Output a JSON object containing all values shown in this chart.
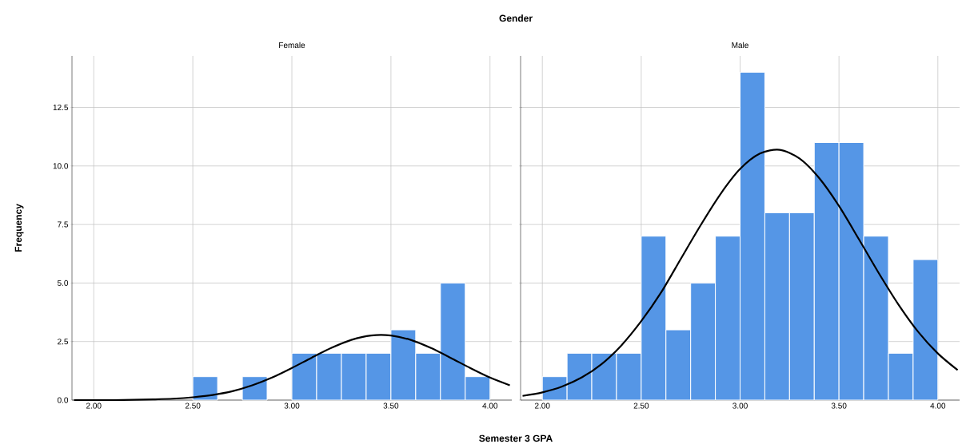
{
  "chart_data": [
    {
      "type": "histogram",
      "title": "Gender",
      "subtitle": "Female",
      "xlabel": "Semester 3 GPA",
      "ylabel": "Frequency",
      "grid": true,
      "xlim": [
        1.89,
        4.11
      ],
      "ylim": [
        0,
        14.7
      ],
      "xticks": [
        {
          "value": 2,
          "label": "2.00"
        },
        {
          "value": 2.5,
          "label": "2.50"
        },
        {
          "value": 3,
          "label": "3.00"
        },
        {
          "value": 3.5,
          "label": "3.50"
        },
        {
          "value": 4,
          "label": "4.00"
        }
      ],
      "yticks": [
        {
          "value": 0,
          "label": "0.0"
        },
        {
          "value": 2.5,
          "label": "2.5"
        },
        {
          "value": 5,
          "label": "5.0"
        },
        {
          "value": 7.5,
          "label": "7.5"
        },
        {
          "value": 10,
          "label": "10.0"
        },
        {
          "value": 12.5,
          "label": "12.5"
        }
      ],
      "bins": [
        2.0,
        2.125,
        2.25,
        2.375,
        2.5,
        2.625,
        2.75,
        2.875,
        3.0,
        3.125,
        3.25,
        3.375,
        3.5,
        3.625,
        3.75,
        3.875,
        4.0
      ],
      "series": [
        {
          "type": "histogram",
          "color": "#5596e6",
          "values": [
            0,
            0,
            0,
            0,
            1,
            0,
            1,
            0,
            2,
            2,
            2,
            2,
            3,
            2,
            5,
            1
          ]
        },
        {
          "type": "line",
          "color": "#000000",
          "x": [
            1.9,
            2.0,
            2.1,
            2.2,
            2.3,
            2.4,
            2.5,
            2.6,
            2.7,
            2.8,
            2.9,
            3.0,
            3.1,
            3.2,
            3.3,
            3.4,
            3.5,
            3.6,
            3.7,
            3.8,
            3.9,
            4.0,
            4.1
          ],
          "values": [
            0.0,
            0.0,
            0.0,
            0.01,
            0.03,
            0.06,
            0.12,
            0.22,
            0.38,
            0.63,
            0.96,
            1.37,
            1.81,
            2.23,
            2.57,
            2.76,
            2.76,
            2.57,
            2.23,
            1.81,
            1.37,
            0.96,
            0.63
          ]
        }
      ]
    },
    {
      "type": "histogram",
      "subtitle": "Male",
      "grid": true,
      "tick_labels": "x",
      "xlim": [
        1.89,
        4.11
      ],
      "ylim": [
        0,
        14.7
      ],
      "xticks": [
        {
          "value": 2,
          "label": "2.00"
        },
        {
          "value": 2.5,
          "label": "2.50"
        },
        {
          "value": 3,
          "label": "3.00"
        },
        {
          "value": 3.5,
          "label": "3.50"
        },
        {
          "value": 4,
          "label": "4.00"
        }
      ],
      "yticks": [
        {
          "value": 0,
          "label": null
        },
        {
          "value": 2.5,
          "label": null
        },
        {
          "value": 5,
          "label": null
        },
        {
          "value": 7.5,
          "label": null
        },
        {
          "value": 10,
          "label": null
        },
        {
          "value": 12.5,
          "label": null
        }
      ],
      "bins": [
        2.0,
        2.125,
        2.25,
        2.375,
        2.5,
        2.625,
        2.75,
        2.875,
        3.0,
        3.125,
        3.25,
        3.375,
        3.5,
        3.625,
        3.75,
        3.875,
        4.0
      ],
      "series": [
        {
          "type": "histogram",
          "color": "#5596e6",
          "values": [
            1,
            2,
            2,
            2,
            7,
            3,
            5,
            7,
            14,
            8,
            8,
            11,
            11,
            7,
            2,
            6
          ]
        },
        {
          "type": "line",
          "color": "#000000",
          "x": [
            1.9,
            2.0,
            2.1,
            2.2,
            2.3,
            2.4,
            2.5,
            2.6,
            2.7,
            2.8,
            2.9,
            3.0,
            3.1,
            3.2,
            3.3,
            3.4,
            3.5,
            3.6,
            3.7,
            3.8,
            3.9,
            4.0,
            4.1
          ],
          "values": [
            0.18,
            0.33,
            0.58,
            0.97,
            1.54,
            2.34,
            3.37,
            4.59,
            6.03,
            7.46,
            8.79,
            9.87,
            10.53,
            10.69,
            10.32,
            9.48,
            8.29,
            6.88,
            5.44,
            4.09,
            2.92,
            1.99,
            1.28
          ]
        }
      ]
    }
  ]
}
